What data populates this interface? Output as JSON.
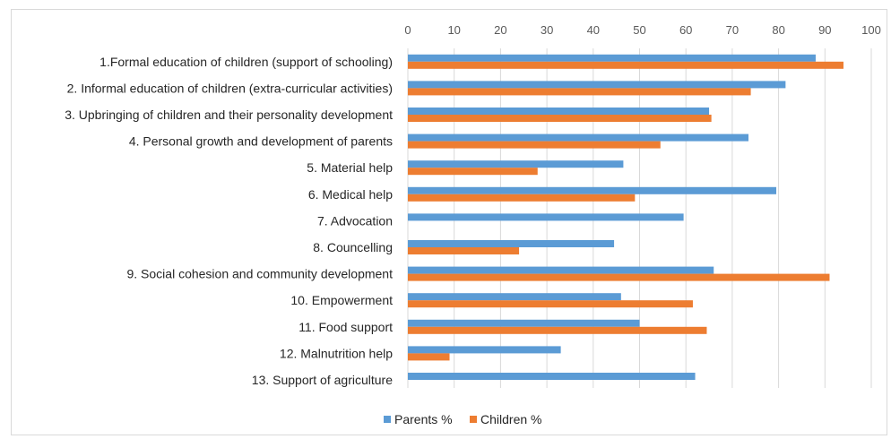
{
  "chart_data": {
    "type": "bar",
    "orientation": "horizontal",
    "title": "",
    "xlabel": "",
    "ylabel": "",
    "xlim": [
      0,
      100
    ],
    "x_ticks": [
      0,
      10,
      20,
      30,
      40,
      50,
      60,
      70,
      80,
      90,
      100
    ],
    "grid": true,
    "legend_position": "bottom",
    "categories": [
      "1.Formal education of children (support of schooling)",
      "2. Informal education of children (extra-curricular activities)",
      "3. Upbringing of children and their personality development",
      "4. Personal growth and development of parents",
      "5. Material help",
      "6. Medical help",
      "7. Advocation",
      "8. Councelling",
      "9. Social cohesion and community development",
      "10. Empowerment",
      "11. Food support",
      "12. Malnutrition help",
      "13. Support of agriculture"
    ],
    "series": [
      {
        "name": "Parents %",
        "color": "#5b9bd5",
        "values": [
          88,
          81.5,
          65,
          73.5,
          46.5,
          79.5,
          59.5,
          44.5,
          66,
          46,
          50,
          33,
          62
        ]
      },
      {
        "name": "Children %",
        "color": "#ed7d31",
        "values": [
          94,
          74,
          65.5,
          54.5,
          28,
          49,
          null,
          24,
          91,
          61.5,
          64.5,
          9,
          null
        ]
      }
    ]
  }
}
